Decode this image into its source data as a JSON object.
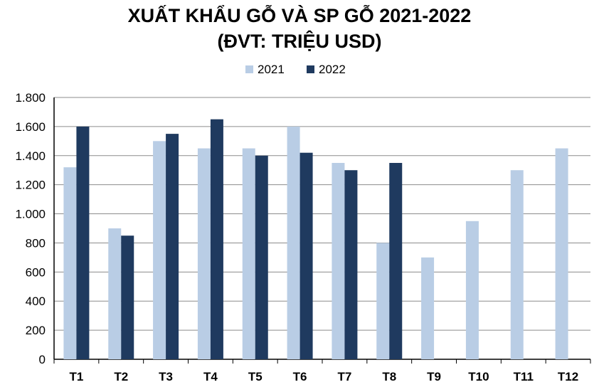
{
  "chart_data": {
    "type": "bar",
    "title_line1": "XUẤT KHẨU GỖ VÀ SP GỖ 2021-2022",
    "title_line2": "(ĐVT: TRIỆU USD)",
    "categories": [
      "T1",
      "T2",
      "T3",
      "T4",
      "T5",
      "T6",
      "T7",
      "T8",
      "T9",
      "T10",
      "T11",
      "T12"
    ],
    "series": [
      {
        "name": "2021",
        "color": "#b9cde5",
        "values": [
          1320,
          900,
          1500,
          1450,
          1450,
          1600,
          1350,
          800,
          700,
          950,
          1300,
          1450
        ]
      },
      {
        "name": "2022",
        "color": "#1f3a5f",
        "values": [
          1600,
          850,
          1550,
          1650,
          1400,
          1420,
          1300,
          1350,
          null,
          null,
          null,
          null
        ]
      }
    ],
    "ylim": [
      0,
      1800
    ],
    "yticks": [
      0,
      200,
      400,
      600,
      800,
      1000,
      1200,
      1400,
      1600,
      1800
    ],
    "ytick_labels": [
      "0",
      "200",
      "400",
      "600",
      "800",
      "1.000",
      "1.200",
      "1.400",
      "1.600",
      "1.800"
    ],
    "grid": true,
    "legend_position": "top-center"
  }
}
